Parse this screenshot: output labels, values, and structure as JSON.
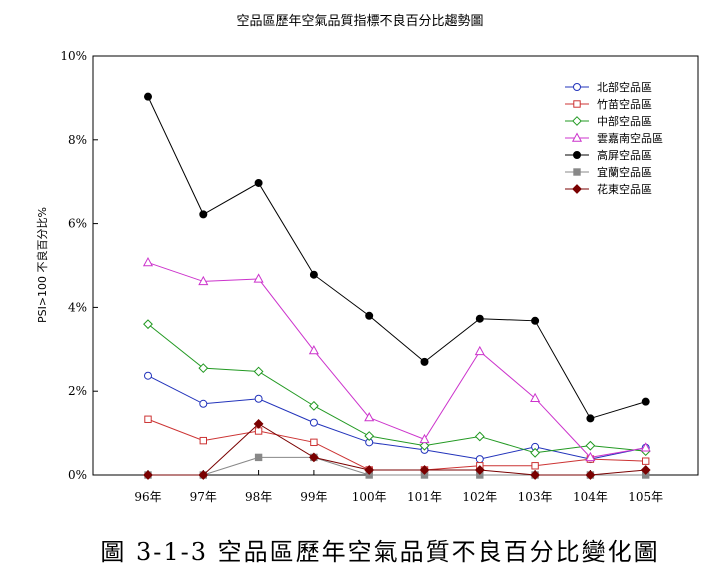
{
  "chart_data": {
    "type": "line",
    "title": "空品區歷年空氣品質指標不良百分比趨勢圖",
    "caption": "圖 3-1-3 空品區歷年空氣品質不良百分比變化圖",
    "ylabel": "PSI>100 不良百分比%",
    "xlabel": "",
    "categories": [
      "96年",
      "97年",
      "98年",
      "99年",
      "100年",
      "101年",
      "102年",
      "103年",
      "104年",
      "105年"
    ],
    "ylim": [
      0,
      10
    ],
    "yticks": [
      "0%",
      "2%",
      "4%",
      "6%",
      "8%",
      "10%"
    ],
    "ytick_values": [
      0,
      2,
      4,
      6,
      8,
      10
    ],
    "grid": false,
    "legend_position": "top-right",
    "series": [
      {
        "name": "北部空品區",
        "color": "#2233bb",
        "marker": "circle-open",
        "values": [
          2.37,
          1.7,
          1.82,
          1.25,
          0.78,
          0.6,
          0.38,
          0.67,
          0.38,
          0.65
        ]
      },
      {
        "name": "竹苗空品區",
        "color": "#cc3333",
        "marker": "square-open",
        "values": [
          1.33,
          0.82,
          1.05,
          0.78,
          0.12,
          0.12,
          0.22,
          0.22,
          0.38,
          0.33
        ]
      },
      {
        "name": "中部空品區",
        "color": "#229922",
        "marker": "diamond-open",
        "values": [
          3.6,
          2.55,
          2.47,
          1.65,
          0.93,
          0.7,
          0.92,
          0.53,
          0.7,
          0.57
        ]
      },
      {
        "name": "雲嘉南空品區",
        "color": "#cc33cc",
        "marker": "triangle-open",
        "values": [
          5.07,
          4.62,
          4.68,
          2.97,
          1.37,
          0.85,
          2.95,
          1.83,
          0.42,
          0.65
        ]
      },
      {
        "name": "高屏空品區",
        "color": "#000000",
        "marker": "circle-filled",
        "values": [
          9.03,
          6.22,
          6.97,
          4.78,
          3.8,
          2.7,
          3.73,
          3.68,
          1.35,
          1.75
        ]
      },
      {
        "name": "宜蘭空品區",
        "color": "#888888",
        "marker": "square-filled",
        "values": [
          0.0,
          0.0,
          0.42,
          0.42,
          0.0,
          0.0,
          0.0,
          0.0,
          0.0,
          0.0
        ]
      },
      {
        "name": "花東空品區",
        "color": "#7a0000",
        "marker": "diamond-filled",
        "values": [
          0.0,
          0.0,
          1.22,
          0.42,
          0.12,
          0.12,
          0.12,
          0.0,
          0.0,
          0.12
        ]
      }
    ]
  }
}
